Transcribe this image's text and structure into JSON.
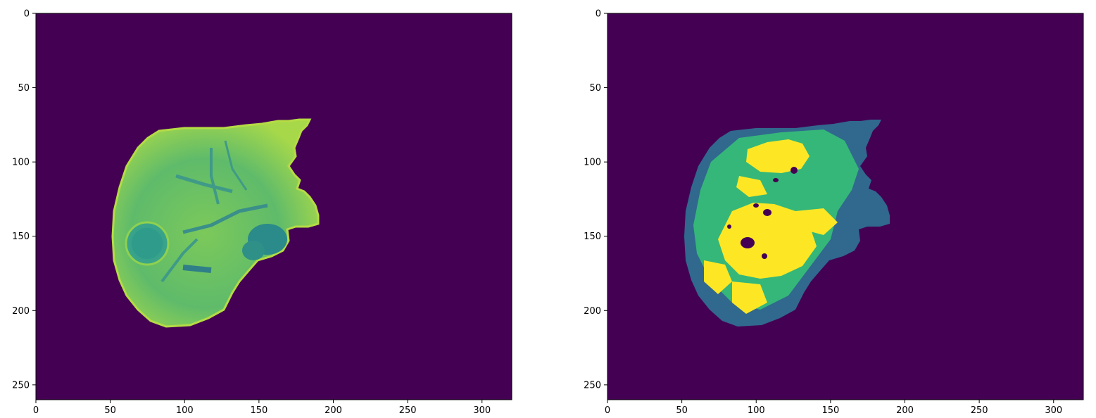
{
  "panels": [
    {
      "id": "left",
      "xlim": [
        0,
        320
      ],
      "ylim": [
        260,
        0
      ],
      "x_ticks": [
        {
          "value": 0,
          "label": "0"
        },
        {
          "value": 50,
          "label": "50"
        },
        {
          "value": 100,
          "label": "100"
        },
        {
          "value": 150,
          "label": "150"
        },
        {
          "value": 200,
          "label": "200"
        },
        {
          "value": 250,
          "label": "250"
        },
        {
          "value": 300,
          "label": "300"
        }
      ],
      "y_ticks": [
        {
          "value": 0,
          "label": "0"
        },
        {
          "value": 50,
          "label": "50"
        },
        {
          "value": 100,
          "label": "100"
        },
        {
          "value": 150,
          "label": "150"
        },
        {
          "value": 200,
          "label": "200"
        },
        {
          "value": 250,
          "label": "250"
        }
      ],
      "colormap": "viridis",
      "background_color": "#440154",
      "image_content": "grayscale CT slice of liver rendered with viridis colormap"
    },
    {
      "id": "right",
      "xlim": [
        0,
        320
      ],
      "ylim": [
        260,
        0
      ],
      "x_ticks": [
        {
          "value": 0,
          "label": "0"
        },
        {
          "value": 50,
          "label": "50"
        },
        {
          "value": 100,
          "label": "100"
        },
        {
          "value": 150,
          "label": "150"
        },
        {
          "value": 200,
          "label": "200"
        },
        {
          "value": 250,
          "label": "250"
        },
        {
          "value": 300,
          "label": "300"
        }
      ],
      "y_ticks": [
        {
          "value": 0,
          "label": "0"
        },
        {
          "value": 50,
          "label": "50"
        },
        {
          "value": 100,
          "label": "100"
        },
        {
          "value": 150,
          "label": "150"
        },
        {
          "value": 200,
          "label": "200"
        },
        {
          "value": 250,
          "label": "250"
        }
      ],
      "colormap": "viridis",
      "background_color": "#440154",
      "image_content": "segmentation label map of the same liver slice"
    }
  ],
  "colors": {
    "bg_purple": "#440154",
    "liver_green": "#5fbb6a",
    "liver_yellowgreen": "#9ad34a",
    "liver_teal": "#3e8c8c",
    "seg_blue": "#31688e",
    "seg_green": "#35b779",
    "seg_yellow": "#fde725"
  }
}
